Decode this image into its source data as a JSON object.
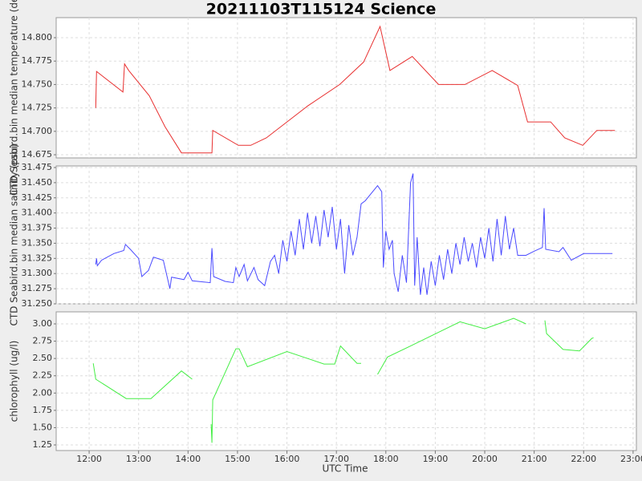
{
  "chart_data": [
    {
      "type": "line",
      "title": "20211103T115124 Science",
      "ylabel": "CTD Seabird.bin median temperature (degC)",
      "color": "#e83030",
      "xlim": [
        "11:20",
        "23:04"
      ],
      "ylim": [
        14.6716,
        14.8214
      ],
      "yticks": [
        14.675,
        {
          "value": 14.7,
          "label": "14.700"
        },
        14.725,
        {
          "value": 14.75,
          "label": "14.750"
        },
        14.775,
        {
          "value": 14.8,
          "label": "14.800"
        }
      ],
      "grid": true,
      "x": [
        "12:08",
        "12:09",
        "12:41",
        "12:43",
        "12:48",
        "13:13",
        "13:32",
        "13:52",
        "14:29",
        "14:30",
        "15:01",
        "15:16",
        "15:35",
        "16:25",
        "17:04",
        "17:33",
        "17:53",
        "18:05",
        "18:32",
        "19:04",
        "19:36",
        "20:09",
        "20:40",
        "20:52",
        "21:20",
        "21:37",
        "21:59",
        "22:16",
        "22:38"
      ],
      "values": [
        14.725,
        14.764,
        14.742,
        14.772,
        14.765,
        14.738,
        14.705,
        14.677,
        14.677,
        14.701,
        14.685,
        14.685,
        14.693,
        14.727,
        14.75,
        14.774,
        14.812,
        14.765,
        14.78,
        14.75,
        14.75,
        14.765,
        14.749,
        14.71,
        14.71,
        14.693,
        14.685,
        14.701,
        14.701
      ]
    },
    {
      "type": "line",
      "ylabel": "CTD Seabird.bin median salinity (psu)",
      "color": "#4a4aff",
      "xlim": [
        "11:20",
        "23:04"
      ],
      "ylim": [
        31.25,
        31.4776
      ],
      "yticks": [
        {
          "value": 31.25,
          "label": "31.250"
        },
        31.275,
        {
          "value": 31.3,
          "label": "31.300"
        },
        31.325,
        {
          "value": 31.35,
          "label": "31.350"
        },
        31.375,
        {
          "value": 31.4,
          "label": "31.400"
        },
        31.425,
        {
          "value": 31.45,
          "label": "31.450"
        },
        31.475
      ],
      "grid": true,
      "x": [
        "12:08",
        "12:09",
        "12:10",
        "12:15",
        "12:30",
        "12:42",
        "12:44",
        "12:50",
        "13:00",
        "13:04",
        "13:12",
        "13:18",
        "13:30",
        "13:38",
        "13:40",
        "13:55",
        "14:00",
        "14:05",
        "14:27",
        "14:29",
        "14:31",
        "14:45",
        "14:55",
        "14:58",
        "15:02",
        "15:08",
        "15:12",
        "15:20",
        "15:25",
        "15:33",
        "15:40",
        "15:45",
        "15:50",
        "15:55",
        "16:00",
        "16:05",
        "16:10",
        "16:15",
        "16:20",
        "16:25",
        "16:30",
        "16:35",
        "16:40",
        "16:45",
        "16:50",
        "16:55",
        "17:00",
        "17:05",
        "17:10",
        "17:15",
        "17:20",
        "17:25",
        "17:30",
        "17:35",
        "17:50",
        "17:55",
        "17:57",
        "18:00",
        "18:04",
        "18:08",
        "18:10",
        "18:15",
        "18:20",
        "18:25",
        "18:30",
        "18:33",
        "18:35",
        "18:38",
        "18:42",
        "18:46",
        "18:50",
        "18:55",
        "19:00",
        "19:05",
        "19:10",
        "19:15",
        "19:20",
        "19:25",
        "19:30",
        "19:35",
        "19:40",
        "19:45",
        "19:50",
        "19:55",
        "20:00",
        "20:05",
        "20:10",
        "20:15",
        "20:20",
        "20:25",
        "20:30",
        "20:35",
        "20:40",
        "20:50",
        "21:00",
        "21:10",
        "21:12",
        "21:14",
        "21:30",
        "21:35",
        "21:45",
        "22:00",
        "22:35"
      ],
      "values": [
        31.315,
        31.325,
        31.313,
        31.322,
        31.333,
        31.338,
        31.348,
        31.34,
        31.325,
        31.295,
        31.305,
        31.327,
        31.322,
        31.275,
        31.294,
        31.29,
        31.302,
        31.288,
        31.285,
        31.342,
        31.295,
        31.287,
        31.285,
        31.31,
        31.295,
        31.315,
        31.288,
        31.31,
        31.29,
        31.28,
        31.32,
        31.33,
        31.3,
        31.355,
        31.32,
        31.37,
        31.33,
        31.39,
        31.34,
        31.4,
        31.35,
        31.395,
        31.345,
        31.405,
        31.36,
        31.41,
        31.34,
        31.39,
        31.3,
        31.38,
        31.33,
        31.36,
        31.415,
        31.42,
        31.445,
        31.435,
        31.31,
        31.37,
        31.34,
        31.355,
        31.3,
        31.27,
        31.33,
        31.285,
        31.45,
        31.465,
        31.28,
        31.36,
        31.265,
        31.31,
        31.265,
        31.32,
        31.28,
        31.33,
        31.29,
        31.34,
        31.3,
        31.35,
        31.315,
        31.36,
        31.32,
        31.35,
        31.31,
        31.36,
        31.325,
        31.375,
        31.32,
        31.39,
        31.33,
        31.395,
        31.34,
        31.375,
        31.33,
        31.33,
        31.337,
        31.343,
        31.408,
        31.34,
        31.336,
        31.343,
        31.322,
        31.333,
        31.333
      ]
    },
    {
      "type": "line",
      "ylabel": "chlorophyll (ug/l)",
      "xlabel": "UTC Time",
      "color": "#44ee44",
      "xlim": [
        "11:20",
        "23:04"
      ],
      "ylim": [
        1.169,
        3.174
      ],
      "yticks": [
        1.25,
        {
          "value": 1.5,
          "label": "1.50"
        },
        1.75,
        {
          "value": 2,
          "label": "2.00"
        },
        2.25,
        {
          "value": 2.5,
          "label": "2.50"
        },
        2.75,
        {
          "value": 3,
          "label": "3.00"
        }
      ],
      "xticks": [
        "12:00",
        "13:00",
        "14:00",
        "15:00",
        "16:00",
        "17:00",
        "18:00",
        "19:00",
        "20:00",
        "21:00",
        "22:00",
        "23:00"
      ],
      "grid": true,
      "x": [
        "12:05",
        "12:08",
        "12:45",
        "13:15",
        "13:52",
        "14:05",
        null,
        "14:28",
        "14:29",
        "14:30",
        "14:58",
        "15:02",
        "15:12",
        "16:00",
        "16:45",
        "16:58",
        "17:05",
        "17:25",
        "17:30",
        null,
        "17:50",
        "18:02",
        "18:30",
        "19:30",
        "20:00",
        "20:35",
        "20:50",
        null,
        "21:13",
        "21:15",
        "21:35",
        "21:55",
        "22:10",
        "22:12"
      ],
      "values": [
        2.43,
        2.2,
        1.92,
        1.92,
        2.32,
        2.2,
        null,
        1.55,
        1.28,
        1.9,
        2.64,
        2.64,
        2.38,
        2.6,
        2.42,
        2.42,
        2.68,
        2.43,
        2.43,
        null,
        2.27,
        2.52,
        2.68,
        3.03,
        2.93,
        3.08,
        3,
        null,
        3.05,
        2.86,
        2.63,
        2.61,
        2.79,
        2.8
      ]
    }
  ]
}
